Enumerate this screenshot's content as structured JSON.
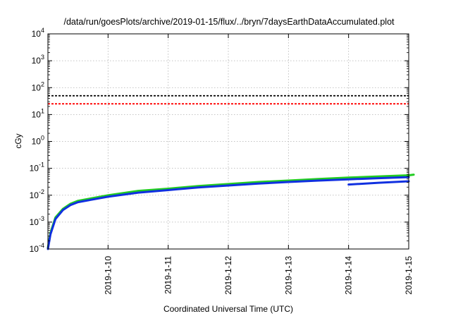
{
  "chart_data": {
    "type": "line",
    "title": "/data/run/goesPlots/archive/2019-01-15/flux/../bryn/7daysEarthDataAccumulated.plot",
    "xlabel": "Coordinated Universal Time (UTC)",
    "ylabel": "cGy",
    "y_scale": "log",
    "ylim": [
      0.0001,
      10000
    ],
    "xlim": [
      "2019-01-09 00:00",
      "2019-01-15 00:00"
    ],
    "grid": true,
    "legend": "none",
    "x_ticks": [
      "2019-1-10",
      "2019-1-11",
      "2019-1-12",
      "2019-1-13",
      "2019-1-14",
      "2019-1-15"
    ],
    "y_ticks": [
      {
        "base": "10",
        "exp": "-4",
        "value": 0.0001
      },
      {
        "base": "10",
        "exp": "-3",
        "value": 0.001
      },
      {
        "base": "10",
        "exp": "-2",
        "value": 0.01
      },
      {
        "base": "10",
        "exp": "-1",
        "value": 0.1
      },
      {
        "base": "10",
        "exp": "0",
        "value": 1
      },
      {
        "base": "10",
        "exp": "1",
        "value": 10
      },
      {
        "base": "10",
        "exp": "2",
        "value": 100
      },
      {
        "base": "10",
        "exp": "3",
        "value": 1000
      },
      {
        "base": "10",
        "exp": "4",
        "value": 10000
      }
    ],
    "thresholds": [
      {
        "value": 50,
        "color": "#000000",
        "style": "dashed"
      },
      {
        "value": 25,
        "color": "#ff0000",
        "style": "dashed"
      }
    ],
    "series": [
      {
        "color": "#22cc22",
        "x": [
          "2019-01-09 00:00",
          "2019-01-09 01:00",
          "2019-01-09 03:00",
          "2019-01-09 06:00",
          "2019-01-09 09:00",
          "2019-01-09 12:00",
          "2019-01-10 00:00",
          "2019-01-10 12:00",
          "2019-01-11 00:00",
          "2019-01-11 12:00",
          "2019-01-12 00:00",
          "2019-01-12 12:00",
          "2019-01-13 00:00",
          "2019-01-13 12:00",
          "2019-01-14 00:00",
          "2019-01-14 12:00",
          "2019-01-15 00:00",
          "2019-01-15 02:00"
        ],
        "y": [
          0.00011,
          0.0004,
          0.0015,
          0.0031,
          0.0048,
          0.0062,
          0.01,
          0.0145,
          0.0175,
          0.022,
          0.026,
          0.031,
          0.035,
          0.04,
          0.045,
          0.05,
          0.055,
          0.058
        ]
      },
      {
        "color": "#1030e0",
        "x": [
          "2019-01-09 00:00",
          "2019-01-09 01:00",
          "2019-01-09 03:00",
          "2019-01-09 06:00",
          "2019-01-09 09:00",
          "2019-01-09 12:00",
          "2019-01-10 00:00",
          "2019-01-10 12:00",
          "2019-01-11 00:00",
          "2019-01-11 12:00",
          "2019-01-12 00:00",
          "2019-01-12 12:00",
          "2019-01-13 00:00",
          "2019-01-13 12:00",
          "2019-01-14 00:00",
          "2019-01-14 12:00",
          "2019-01-15 00:00"
        ],
        "y": [
          0.0001,
          0.00035,
          0.0013,
          0.0028,
          0.0043,
          0.0055,
          0.0088,
          0.0125,
          0.0155,
          0.0195,
          0.023,
          0.027,
          0.031,
          0.035,
          0.039,
          0.043,
          0.047
        ]
      },
      {
        "color": "#1030e0",
        "x": [
          "2019-01-14 00:00",
          "2019-01-14 12:00",
          "2019-01-15 00:00"
        ],
        "y": [
          0.025,
          0.029,
          0.033
        ]
      }
    ]
  }
}
